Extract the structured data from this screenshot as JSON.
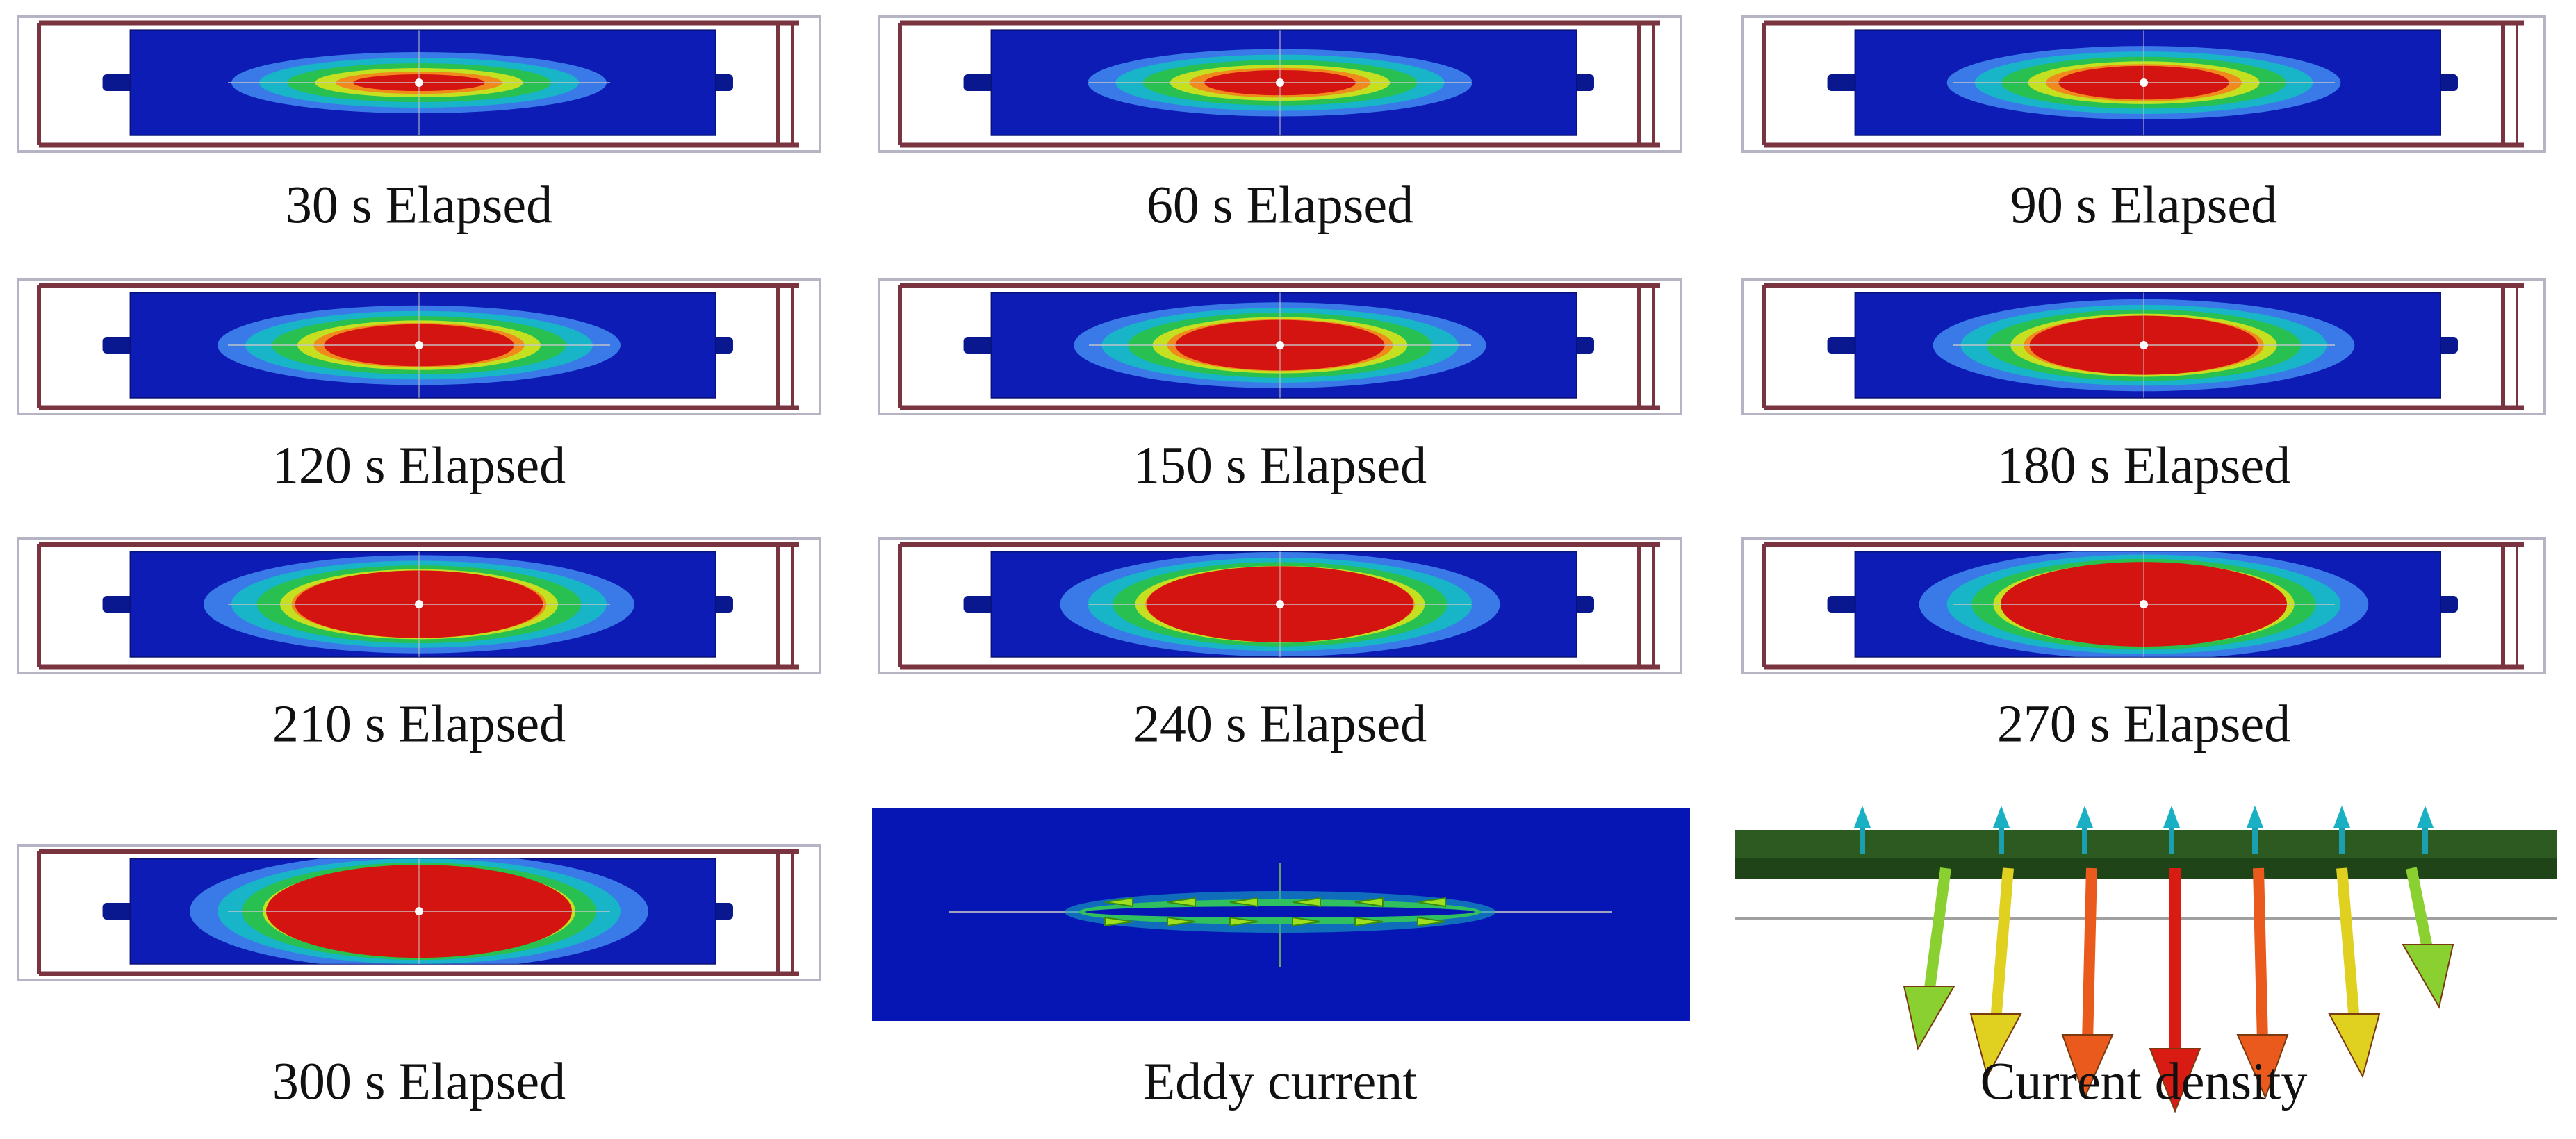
{
  "panels": [
    {
      "caption": "30 s Elapsed"
    },
    {
      "caption": "60 s Elapsed"
    },
    {
      "caption": "90 s Elapsed"
    },
    {
      "caption": "120 s Elapsed"
    },
    {
      "caption": "150 s Elapsed"
    },
    {
      "caption": "180 s Elapsed"
    },
    {
      "caption": "210 s Elapsed"
    },
    {
      "caption": "240 s Elapsed"
    },
    {
      "caption": "270 s Elapsed"
    },
    {
      "caption": "300 s Elapsed"
    },
    {
      "caption": "Eddy current"
    },
    {
      "caption": "Current density"
    }
  ]
}
